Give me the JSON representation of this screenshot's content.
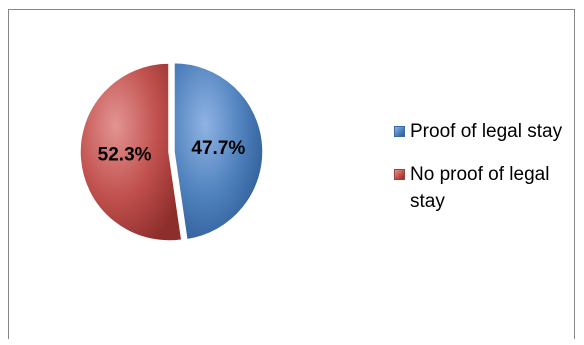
{
  "chart_data": {
    "type": "pie",
    "title": "",
    "categories": [
      "Proof of legal stay",
      "No proof of legal stay"
    ],
    "values": [
      47.7,
      52.3
    ],
    "value_labels": [
      "47.7%",
      "52.3%"
    ],
    "colors": [
      "#4f81bd",
      "#c0504d"
    ],
    "start_angle": "12 o'clock",
    "direction": "clockwise",
    "exploded_slice": "Proof of legal stay",
    "legend_position": "right"
  }
}
